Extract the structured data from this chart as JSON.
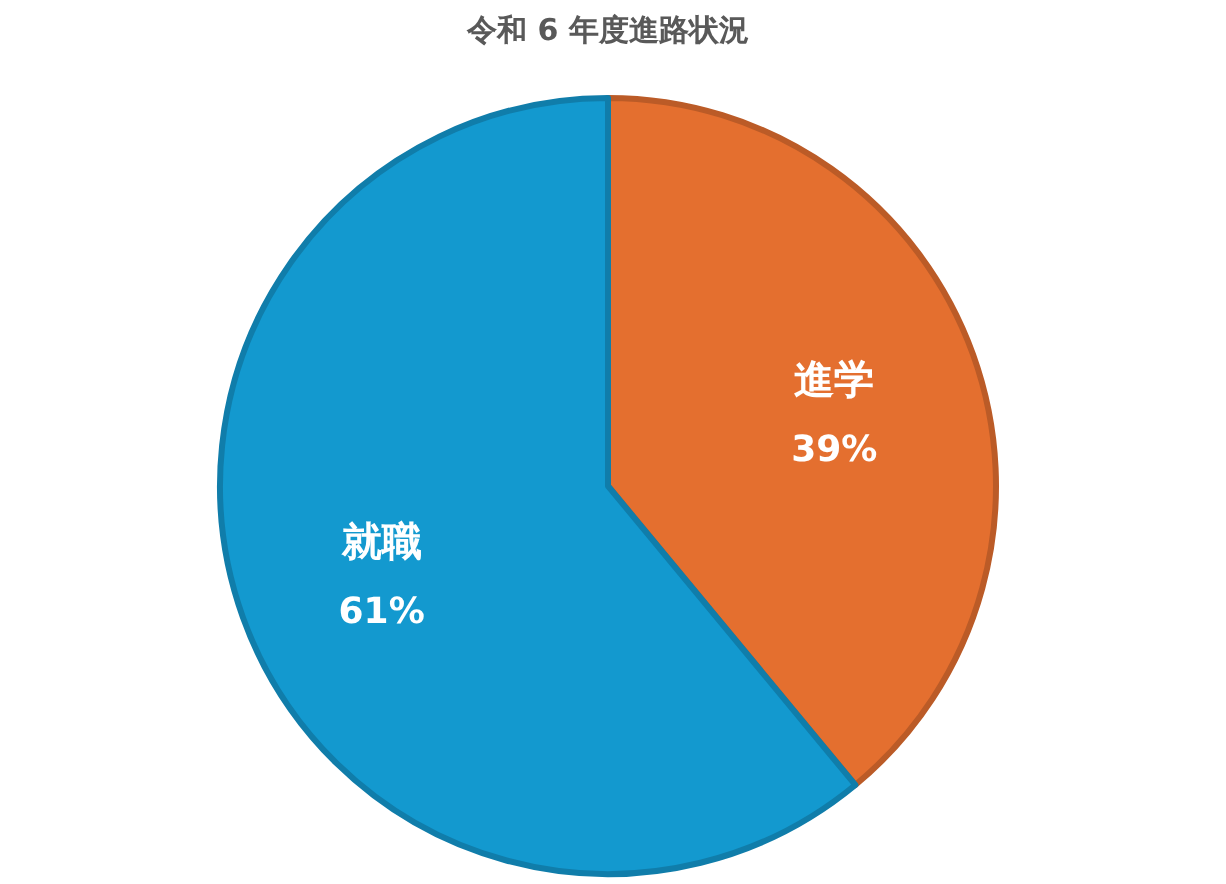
{
  "chart_data": {
    "type": "pie",
    "title": "令和 6 年度進路状況",
    "categories": [
      "進学",
      "就職"
    ],
    "values": [
      39,
      61
    ],
    "value_labels": [
      "39%",
      "61%"
    ],
    "colors": [
      "#e46f2f",
      "#1399cf"
    ]
  }
}
